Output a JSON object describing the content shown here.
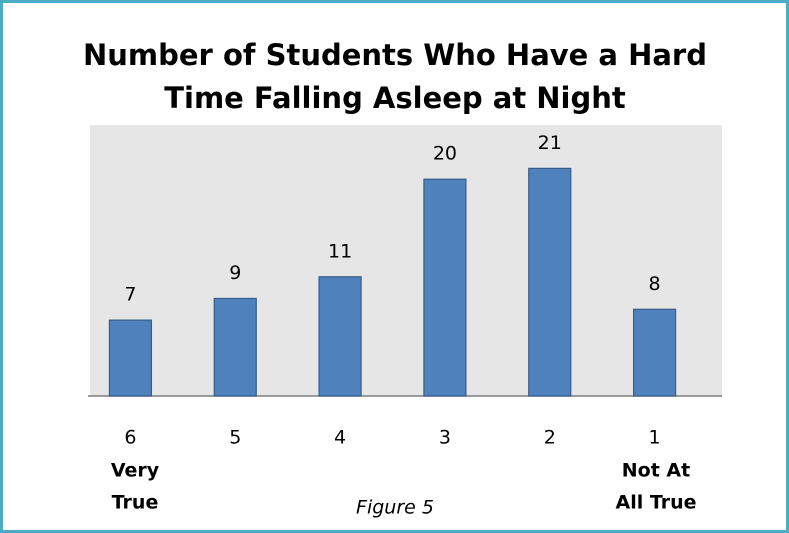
{
  "chart_data": {
    "type": "bar",
    "title": [
      "Number of Students Who Have a Hard",
      "Time Falling Asleep at Night"
    ],
    "categories": [
      "6",
      "5",
      "4",
      "3",
      "2",
      "1"
    ],
    "values": [
      7,
      9,
      11,
      20,
      21,
      8
    ],
    "color": "#4f81bd",
    "ylim": [
      0,
      25
    ],
    "annotations": [
      [
        "Very",
        "True"
      ],
      [
        "Not At",
        "All True"
      ]
    ],
    "caption": "Figure 5"
  }
}
